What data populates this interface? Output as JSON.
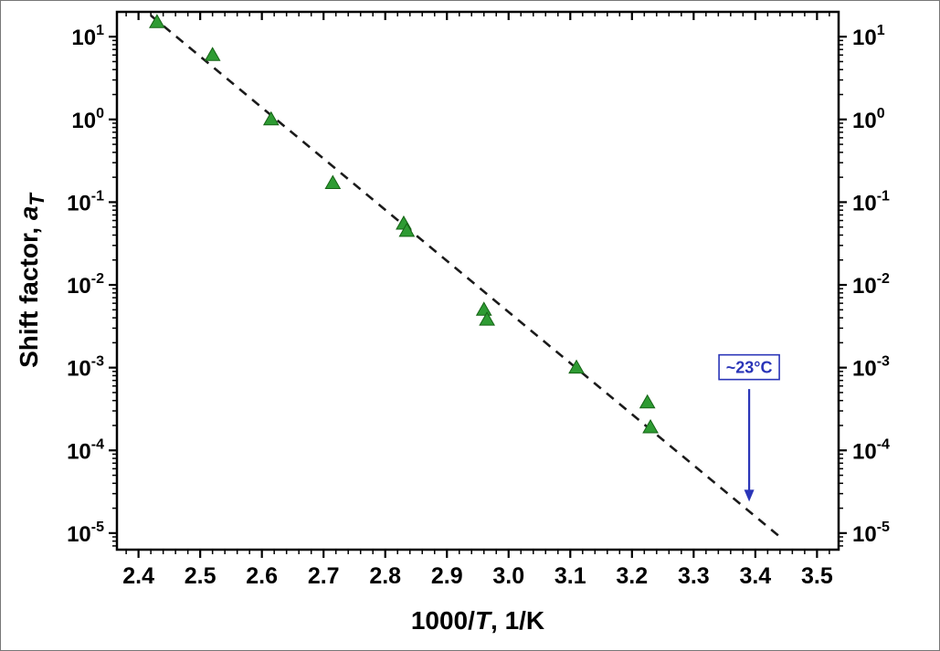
{
  "page": {
    "background": "#ffffff"
  },
  "chart_data": {
    "type": "scatter",
    "title": "",
    "xlabel_parts": [
      {
        "text": "1000/",
        "italic": false,
        "sub": false
      },
      {
        "text": "T",
        "italic": true,
        "sub": false
      },
      {
        "text": ", 1/K",
        "italic": false,
        "sub": false
      }
    ],
    "ylabel_parts": [
      {
        "text": "Shift factor, ",
        "italic": false,
        "sub": false
      },
      {
        "text": "a",
        "italic": true,
        "sub": false
      },
      {
        "text": "T",
        "italic": true,
        "sub": true
      }
    ],
    "xlim": [
      2.365,
      3.535
    ],
    "ylim_log": [
      -5.2,
      1.3
    ],
    "x_major_tick_labels": [
      "2.4",
      "2.5",
      "2.6",
      "2.7",
      "2.8",
      "2.9",
      "3.0",
      "3.1",
      "3.2",
      "3.3",
      "3.4",
      "3.5"
    ],
    "x_minor_step": 0.02,
    "y_major_exponents": [
      "1",
      "0",
      "-1",
      "-2",
      "-3",
      "-4",
      "-5"
    ],
    "grid": false,
    "legend": false,
    "axis_color": "#000000",
    "series": [
      {
        "name": "shift-factor-points",
        "marker": "triangle",
        "color": "#2e9b33",
        "edge_color": "#156315",
        "points": [
          {
            "x": 2.43,
            "y": 15
          },
          {
            "x": 2.52,
            "y": 6.0
          },
          {
            "x": 2.615,
            "y": 1.0
          },
          {
            "x": 2.715,
            "y": 0.17
          },
          {
            "x": 2.83,
            "y": 0.055
          },
          {
            "x": 2.835,
            "y": 0.045
          },
          {
            "x": 2.96,
            "y": 0.005
          },
          {
            "x": 2.965,
            "y": 0.0038
          },
          {
            "x": 3.11,
            "y": 0.001
          },
          {
            "x": 3.225,
            "y": 0.00038
          },
          {
            "x": 3.23,
            "y": 0.00019
          }
        ]
      }
    ],
    "fit_line": {
      "style": "dashed",
      "color": "#1a1a1a",
      "x1": 2.42,
      "y1": 18,
      "x2": 3.44,
      "y2": 9e-06
    },
    "annotation": {
      "text": "~23°C",
      "color": "#2a35b8",
      "x": 3.39,
      "box_y": 0.001,
      "arrow_start_y": 0.00055,
      "arrow_end_y": 2.4e-05
    }
  }
}
